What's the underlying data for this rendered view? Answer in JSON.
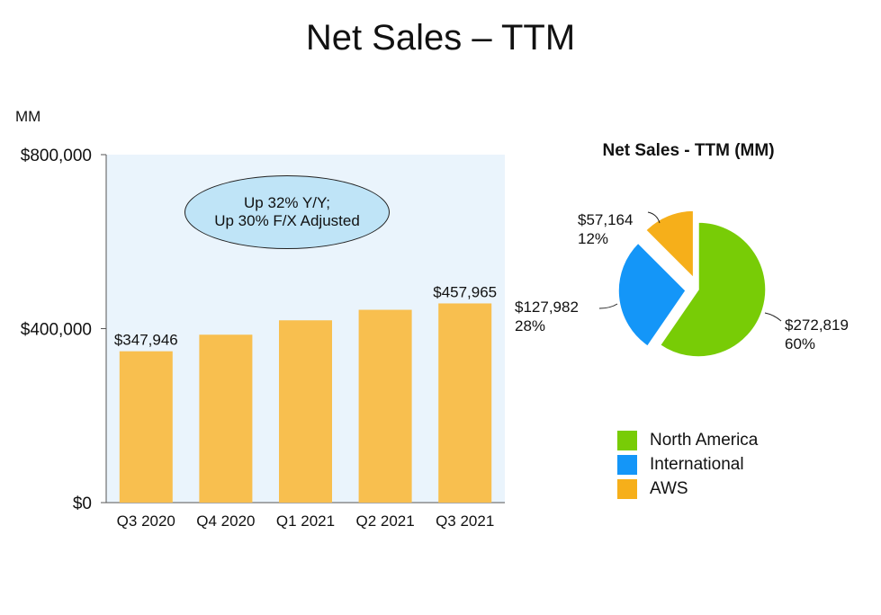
{
  "header": {
    "title": "Net Sales – TTM"
  },
  "chart_data": [
    {
      "type": "bar",
      "unit_label": "MM",
      "categories": [
        "Q3 2020",
        "Q4 2020",
        "Q1 2021",
        "Q2 2021",
        "Q3 2021"
      ],
      "values": [
        347946,
        386064,
        419130,
        443298,
        457965
      ],
      "data_labels": [
        "$347,946",
        "",
        "",
        "",
        "$457,965"
      ],
      "ylim": [
        0,
        800000
      ],
      "yticks": [
        {
          "value": 0,
          "label": "$0"
        },
        {
          "value": 400000,
          "label": "$400,000"
        },
        {
          "value": 800000,
          "label": "$800,000"
        }
      ],
      "annotation": [
        "Up 32% Y/Y;",
        "Up 30% F/X Adjusted"
      ],
      "colors": {
        "bar": "#f8bf4f",
        "plot_background": "#eaf4fc",
        "annotation_fill": "#bfe4f7"
      }
    },
    {
      "type": "pie",
      "title": "Net Sales - TTM (MM)",
      "slices": [
        {
          "name": "North America",
          "value": 272819,
          "value_label": "$272,819",
          "percent_label": "60%",
          "color": "#78cc06"
        },
        {
          "name": "International",
          "value": 127982,
          "value_label": "$127,982",
          "percent_label": "28%",
          "color": "#1496f8"
        },
        {
          "name": "AWS",
          "value": 57164,
          "value_label": "$57,164",
          "percent_label": "12%",
          "color": "#f6af1a"
        }
      ],
      "legend_position": "bottom"
    }
  ]
}
